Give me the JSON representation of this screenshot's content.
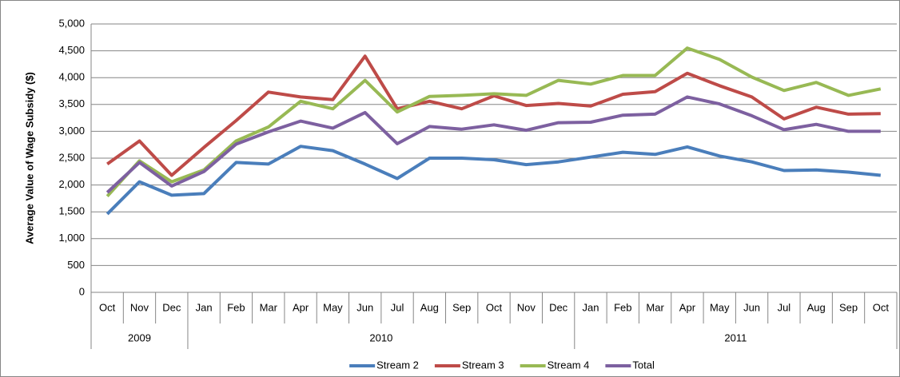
{
  "chart_data": {
    "type": "line",
    "y_label": "Average Value of Wage Subsidy ($)",
    "category_groups": [
      {
        "label": "2009",
        "categories": [
          "Oct",
          "Nov",
          "Dec"
        ]
      },
      {
        "label": "2010",
        "categories": [
          "Jan",
          "Feb",
          "Mar",
          "Apr",
          "May",
          "Jun",
          "Jul",
          "Aug",
          "Sep",
          "Oct",
          "Nov",
          "Dec"
        ]
      },
      {
        "label": "2011",
        "categories": [
          "Jan",
          "Feb",
          "Mar",
          "Apr",
          "May",
          "Jun",
          "Jul",
          "Aug",
          "Sep",
          "Oct"
        ]
      }
    ],
    "series": [
      {
        "name": "Stream 2",
        "color": "#4a7ebb",
        "values": [
          1460,
          2060,
          1810,
          1840,
          2420,
          2390,
          2720,
          2640,
          2390,
          2120,
          2500,
          2500,
          2470,
          2380,
          2430,
          2520,
          2610,
          2570,
          2710,
          2540,
          2430,
          2270,
          2280,
          2240,
          2180
        ]
      },
      {
        "name": "Stream 3",
        "color": "#be4b48",
        "values": [
          2390,
          2820,
          2180,
          2700,
          3200,
          3730,
          3640,
          3590,
          4400,
          3420,
          3560,
          3420,
          3660,
          3480,
          3520,
          3470,
          3690,
          3740,
          4080,
          3850,
          3640,
          3230,
          3450,
          3320,
          3330
        ]
      },
      {
        "name": "Stream 4",
        "color": "#98b954",
        "values": [
          1790,
          2450,
          2060,
          2280,
          2820,
          3080,
          3560,
          3420,
          3950,
          3360,
          3650,
          3670,
          3700,
          3670,
          3950,
          3880,
          4040,
          4040,
          4550,
          4340,
          4010,
          3760,
          3910,
          3670,
          3790
        ]
      },
      {
        "name": "Total",
        "color": "#7d60a0",
        "values": [
          1860,
          2420,
          1980,
          2250,
          2760,
          2990,
          3190,
          3060,
          3350,
          2770,
          3090,
          3040,
          3120,
          3020,
          3160,
          3170,
          3300,
          3320,
          3640,
          3510,
          3290,
          3030,
          3130,
          3000,
          3000
        ]
      }
    ],
    "ylim": [
      0,
      5000
    ],
    "yticks": [
      0,
      500,
      {
        "value": 1000,
        "label": "1,000"
      },
      {
        "value": 1500,
        "label": "1,500"
      },
      {
        "value": 2000,
        "label": "2,000"
      },
      {
        "value": 2500,
        "label": "2,500"
      },
      {
        "value": 3000,
        "label": "3,000"
      },
      {
        "value": 3500,
        "label": "3,500"
      },
      {
        "value": 4000,
        "label": "4,000"
      },
      {
        "value": 4500,
        "label": "4,500"
      },
      {
        "value": 5000,
        "label": "5,000"
      }
    ],
    "grid": true,
    "legend": "bottom"
  }
}
